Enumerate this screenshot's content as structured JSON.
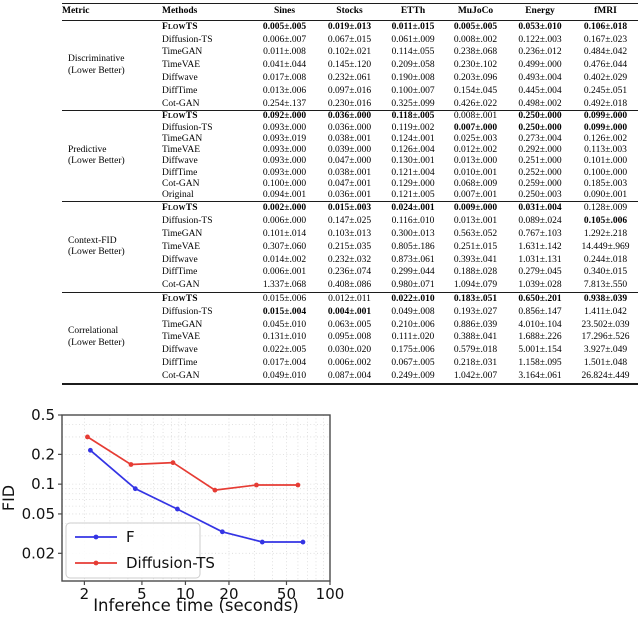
{
  "table": {
    "headers": [
      "Metric",
      "Methods",
      "Sines",
      "Stocks",
      "ETTh",
      "MuJoCo",
      "Energy",
      "fMRI"
    ],
    "groups": [
      {
        "metric_line1": "Discriminative",
        "metric_line2": "(Lower Better)",
        "rows": [
          {
            "method": "FlowTS",
            "sc": 1,
            "method_bold": 1,
            "values": [
              "0.005±.005",
              "0.019±.013",
              "0.011±.015",
              "0.005±.005",
              "0.053±.010",
              "0.106±.018"
            ],
            "bold": [
              1,
              1,
              1,
              1,
              1,
              1
            ]
          },
          {
            "method": "Diffusion-TS",
            "values": [
              "0.006±.007",
              "0.067±.015",
              "0.061±.009",
              "0.008±.002",
              "0.122±.003",
              "0.167±.023"
            ],
            "bold": [
              0,
              0,
              0,
              0,
              0,
              0
            ]
          },
          {
            "method": "TimeGAN",
            "values": [
              "0.011±.008",
              "0.102±.021",
              "0.114±.055",
              "0.238±.068",
              "0.236±.012",
              "0.484±.042"
            ],
            "bold": [
              0,
              0,
              0,
              0,
              0,
              0
            ]
          },
          {
            "method": "TimeVAE",
            "values": [
              "0.041±.044",
              "0.145±.120",
              "0.209±.058",
              "0.230±.102",
              "0.499±.000",
              "0.476±.044"
            ],
            "bold": [
              0,
              0,
              0,
              0,
              0,
              0
            ]
          },
          {
            "method": "Diffwave",
            "values": [
              "0.017±.008",
              "0.232±.061",
              "0.190±.008",
              "0.203±.096",
              "0.493±.004",
              "0.402±.029"
            ],
            "bold": [
              0,
              0,
              0,
              0,
              0,
              0
            ]
          },
          {
            "method": "DiffTime",
            "values": [
              "0.013±.006",
              "0.097±.016",
              "0.100±.007",
              "0.154±.045",
              "0.445±.004",
              "0.245±.051"
            ],
            "bold": [
              0,
              0,
              0,
              0,
              0,
              0
            ]
          },
          {
            "method": "Cot-GAN",
            "values": [
              "0.254±.137",
              "0.230±.016",
              "0.325±.099",
              "0.426±.022",
              "0.498±.002",
              "0.492±.018"
            ],
            "bold": [
              0,
              0,
              0,
              0,
              0,
              0
            ]
          }
        ]
      },
      {
        "metric_line1": "Predictive",
        "metric_line2": "(Lower Better)",
        "rows": [
          {
            "method": "FlowTS",
            "sc": 1,
            "method_bold": 1,
            "values": [
              "0.092±.000",
              "0.036±.000",
              "0.118±.005",
              "0.008±.001",
              "0.250±.000",
              "0.099±.000"
            ],
            "bold": [
              1,
              1,
              1,
              0,
              1,
              1
            ]
          },
          {
            "method": "Diffusion-TS",
            "values": [
              "0.093±.000",
              "0.036±.000",
              "0.119±.002",
              "0.007±.000",
              "0.250±.000",
              "0.099±.000"
            ],
            "bold": [
              0,
              0,
              0,
              1,
              1,
              1
            ]
          },
          {
            "method": "TimeGAN",
            "values": [
              "0.093±.019",
              "0.038±.001",
              "0.124±.001",
              "0.025±.003",
              "0.273±.004",
              "0.126±.002"
            ],
            "bold": [
              0,
              0,
              0,
              0,
              0,
              0
            ]
          },
          {
            "method": "TimeVAE",
            "values": [
              "0.093±.000",
              "0.039±.000",
              "0.126±.004",
              "0.012±.002",
              "0.292±.000",
              "0.113±.003"
            ],
            "bold": [
              0,
              0,
              0,
              0,
              0,
              0
            ]
          },
          {
            "method": "Diffwave",
            "values": [
              "0.093±.000",
              "0.047±.000",
              "0.130±.001",
              "0.013±.000",
              "0.251±.000",
              "0.101±.000"
            ],
            "bold": [
              0,
              0,
              0,
              0,
              0,
              0
            ]
          },
          {
            "method": "DiffTime",
            "values": [
              "0.093±.000",
              "0.038±.001",
              "0.121±.004",
              "0.010±.001",
              "0.252±.000",
              "0.100±.000"
            ],
            "bold": [
              0,
              0,
              0,
              0,
              0,
              0
            ]
          },
          {
            "method": "Cot-GAN",
            "values": [
              "0.100±.000",
              "0.047±.001",
              "0.129±.000",
              "0.068±.009",
              "0.259±.000",
              "0.185±.003"
            ],
            "bold": [
              0,
              0,
              0,
              0,
              0,
              0
            ]
          },
          {
            "method": "Original",
            "values": [
              "0.094±.001",
              "0.036±.001",
              "0.121±.005",
              "0.007±.001",
              "0.250±.003",
              "0.090±.001"
            ],
            "bold": [
              0,
              0,
              0,
              0,
              0,
              0
            ]
          }
        ]
      },
      {
        "metric_line1": "Context-FID",
        "metric_line2": "(Lower Better)",
        "rows": [
          {
            "method": "FlowTS",
            "sc": 1,
            "method_bold": 1,
            "values": [
              "0.002±.000",
              "0.015±.003",
              "0.024±.001",
              "0.009±.000",
              "0.031±.004",
              "0.128±.009"
            ],
            "bold": [
              1,
              1,
              1,
              1,
              1,
              0
            ]
          },
          {
            "method": "Diffusion-TS",
            "values": [
              "0.006±.000",
              "0.147±.025",
              "0.116±.010",
              "0.013±.001",
              "0.089±.024",
              "0.105±.006"
            ],
            "bold": [
              0,
              0,
              0,
              0,
              0,
              1
            ]
          },
          {
            "method": "TimeGAN",
            "values": [
              "0.101±.014",
              "0.103±.013",
              "0.300±.013",
              "0.563±.052",
              "0.767±.103",
              "1.292±.218"
            ],
            "bold": [
              0,
              0,
              0,
              0,
              0,
              0
            ]
          },
          {
            "method": "TimeVAE",
            "values": [
              "0.307±.060",
              "0.215±.035",
              "0.805±.186",
              "0.251±.015",
              "1.631±.142",
              "14.449±.969"
            ],
            "bold": [
              0,
              0,
              0,
              0,
              0,
              0
            ]
          },
          {
            "method": "Diffwave",
            "values": [
              "0.014±.002",
              "0.232±.032",
              "0.873±.061",
              "0.393±.041",
              "1.031±.131",
              "0.244±.018"
            ],
            "bold": [
              0,
              0,
              0,
              0,
              0,
              0
            ]
          },
          {
            "method": "DiffTime",
            "values": [
              "0.006±.001",
              "0.236±.074",
              "0.299±.044",
              "0.188±.028",
              "0.279±.045",
              "0.340±.015"
            ],
            "bold": [
              0,
              0,
              0,
              0,
              0,
              0
            ]
          },
          {
            "method": "Cot-GAN",
            "values": [
              "1.337±.068",
              "0.408±.086",
              "0.980±.071",
              "1.094±.079",
              "1.039±.028",
              "7.813±.550"
            ],
            "bold": [
              0,
              0,
              0,
              0,
              0,
              0
            ]
          }
        ]
      },
      {
        "metric_line1": "Correlational",
        "metric_line2": "(Lower Better)",
        "rows": [
          {
            "method": "FlowTS",
            "sc": 1,
            "method_bold": 1,
            "values": [
              "0.015±.006",
              "0.012±.011",
              "0.022±.010",
              "0.183±.051",
              "0.650±.201",
              "0.938±.039"
            ],
            "bold": [
              0,
              0,
              1,
              1,
              1,
              1
            ]
          },
          {
            "method": "Diffusion-TS",
            "values": [
              "0.015±.004",
              "0.004±.001",
              "0.049±.008",
              "0.193±.027",
              "0.856±.147",
              "1.411±.042"
            ],
            "bold": [
              1,
              1,
              0,
              0,
              0,
              0
            ]
          },
          {
            "method": "TimeGAN",
            "values": [
              "0.045±.010",
              "0.063±.005",
              "0.210±.006",
              "0.886±.039",
              "4.010±.104",
              "23.502±.039"
            ],
            "bold": [
              0,
              0,
              0,
              0,
              0,
              0
            ]
          },
          {
            "method": "TimeVAE",
            "values": [
              "0.131±.010",
              "0.095±.008",
              "0.111±.020",
              "0.388±.041",
              "1.688±.226",
              "17.296±.526"
            ],
            "bold": [
              0,
              0,
              0,
              0,
              0,
              0
            ]
          },
          {
            "method": "Diffwave",
            "values": [
              "0.022±.005",
              "0.030±.020",
              "0.175±.006",
              "0.579±.018",
              "5.001±.154",
              "3.927±.049"
            ],
            "bold": [
              0,
              0,
              0,
              0,
              0,
              0
            ]
          },
          {
            "method": "DiffTime",
            "values": [
              "0.017±.004",
              "0.006±.002",
              "0.067±.005",
              "0.218±.031",
              "1.158±.095",
              "1.501±.048"
            ],
            "bold": [
              0,
              0,
              0,
              0,
              0,
              0
            ]
          },
          {
            "method": "Cot-GAN",
            "values": [
              "0.049±.010",
              "0.087±.004",
              "0.249±.009",
              "1.042±.007",
              "3.164±.061",
              "26.824±.449"
            ],
            "bold": [
              0,
              0,
              0,
              0,
              0,
              0
            ]
          }
        ]
      }
    ]
  },
  "chart_data": {
    "type": "line",
    "xlabel": "Inference time (seconds)",
    "ylabel": "FID",
    "xscale": "log",
    "yscale": "log",
    "xlim": [
      1.4,
      100
    ],
    "ylim": [
      0.0105,
      0.5
    ],
    "xticks": [
      2,
      5,
      10,
      20,
      50,
      100
    ],
    "yticks": [
      0.5,
      0.2,
      0.1,
      0.05,
      0.02
    ],
    "grid": true,
    "legend_position": "lower left",
    "series": [
      {
        "name": "F",
        "color": "#3434e4",
        "points": [
          [
            2.2,
            0.22
          ],
          [
            4.5,
            0.09
          ],
          [
            8.8,
            0.056
          ],
          [
            18,
            0.033
          ],
          [
            34,
            0.026
          ],
          [
            65,
            0.026
          ]
        ]
      },
      {
        "name": "Diffusion-TS",
        "color": "#e63c34",
        "points": [
          [
            2.1,
            0.3
          ],
          [
            4.2,
            0.158
          ],
          [
            8.2,
            0.165
          ],
          [
            16,
            0.087
          ],
          [
            31,
            0.098
          ],
          [
            60,
            0.098
          ]
        ]
      }
    ]
  }
}
